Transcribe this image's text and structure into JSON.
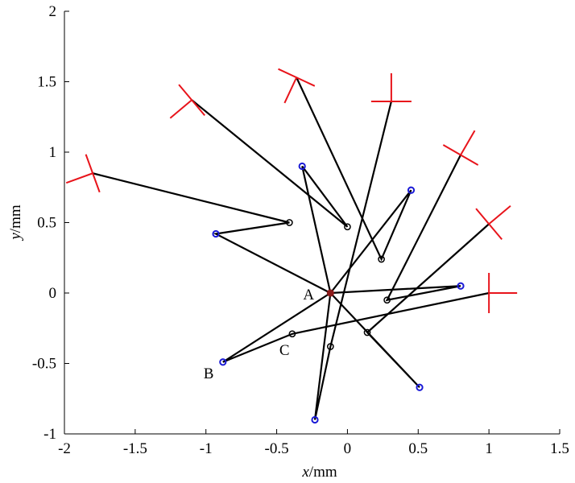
{
  "chart_data": {
    "type": "line",
    "title": "",
    "xlabel": {
      "var": "x",
      "unit": "/mm"
    },
    "ylabel": {
      "var": "y",
      "unit": "/mm"
    },
    "xlim": [
      -2,
      1.5
    ],
    "ylim": [
      -1,
      2
    ],
    "xticks": [
      "-2",
      "-1.5",
      "-1",
      "-0.5",
      "0",
      "0.5",
      "1",
      "1.5"
    ],
    "yticks": [
      "-1",
      "-0.5",
      "0",
      "0.5",
      "1",
      "1.5",
      "2"
    ],
    "grid": false,
    "colors": {
      "links": "#000000",
      "joint": "#000000",
      "end_point": "#1a1ad6",
      "gripper": "#e8141b",
      "base": "#8b1a1a"
    },
    "base": {
      "x": -0.12,
      "y": 0.0
    },
    "annotations": [
      {
        "text": "A",
        "x": -0.12,
        "y": 0.0
      },
      {
        "text": "B",
        "x": -0.88,
        "y": -0.49
      },
      {
        "text": "C",
        "x": -0.39,
        "y": -0.29
      }
    ],
    "chains": [
      {
        "points": [
          [
            -0.12,
            0.0
          ],
          [
            -0.93,
            0.42
          ],
          [
            -0.41,
            0.5
          ],
          [
            -1.8,
            0.85
          ]
        ],
        "gripper": {
          "angle": -160
        }
      },
      {
        "points": [
          [
            -0.12,
            0.0
          ],
          [
            -0.32,
            0.9
          ],
          [
            0.0,
            0.47
          ],
          [
            -1.1,
            1.37
          ]
        ],
        "gripper": {
          "angle": -140
        }
      },
      {
        "points": [
          [
            -0.12,
            0.0
          ],
          [
            0.45,
            0.73
          ],
          [
            0.24,
            0.24
          ],
          [
            -0.36,
            1.53
          ]
        ],
        "gripper": {
          "angle": -115
        }
      },
      {
        "points": [
          [
            -0.12,
            0.0
          ],
          [
            -0.88,
            -0.49
          ],
          [
            -0.39,
            -0.29
          ],
          [
            1.0,
            0.0
          ]
        ],
        "gripper": {
          "angle": 0
        }
      },
      {
        "points": [
          [
            -0.12,
            0.0
          ],
          [
            0.8,
            0.05
          ],
          [
            0.28,
            -0.05
          ],
          [
            0.8,
            0.98
          ]
        ],
        "gripper": {
          "angle": 60
        }
      },
      {
        "points": [
          [
            -0.12,
            0.0
          ],
          [
            0.51,
            -0.67
          ],
          [
            0.14,
            -0.28
          ],
          [
            1.0,
            0.49
          ]
        ],
        "gripper": {
          "angle": 40
        }
      },
      {
        "points": [
          [
            -0.12,
            0.0
          ],
          [
            -0.23,
            -0.9
          ],
          [
            -0.12,
            -0.38
          ],
          [
            0.31,
            1.36
          ]
        ],
        "gripper": {
          "angle": 90
        }
      }
    ]
  }
}
